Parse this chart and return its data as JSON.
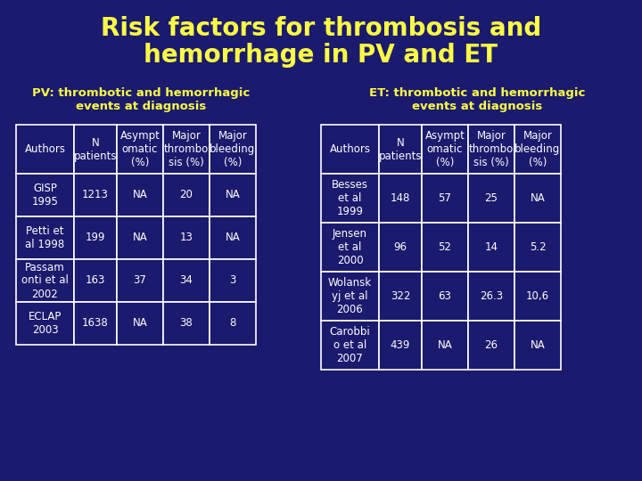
{
  "title_line1": "Risk factors for thrombosis and",
  "title_line2": "hemorrhage in PV and ET",
  "title_color": "#FFFF44",
  "bg_color": "#1a1a6e",
  "table_bg": "#1a1a6e",
  "table_border_color": "#ffffff",
  "table_text_color": "#ffffff",
  "subtitle_color": "#FFFF44",
  "pv_subtitle": "PV: thrombotic and hemorrhagic\nevents at diagnosis",
  "et_subtitle": "ET: thrombotic and hemorrhagic\nevents at diagnosis",
  "pv_headers": [
    "Authors",
    "N\npatients",
    "Asympt\nomatic\n(%)",
    "Major\nthrombo\nsis (%)",
    "Major\nbleeding\n(%)"
  ],
  "pv_rows": [
    [
      "GISP\n1995",
      "1213",
      "NA",
      "20",
      "NA"
    ],
    [
      "Petti et\nal 1998",
      "199",
      "NA",
      "13",
      "NA"
    ],
    [
      "Passam\nonti et al\n2002",
      "163",
      "37",
      "34",
      "3"
    ],
    [
      "ECLAP\n2003",
      "1638",
      "NA",
      "38",
      "8"
    ]
  ],
  "et_headers": [
    "Authors",
    "N\npatients",
    "Asympt\nomatic\n(%)",
    "Major\nthrombo\nsis (%)",
    "Major\nbleeding\n(%)"
  ],
  "et_rows": [
    [
      "Besses\net al\n1999",
      "148",
      "57",
      "25",
      "NA"
    ],
    [
      "Jensen\net al\n2000",
      "96",
      "52",
      "14",
      "5.2"
    ],
    [
      "Wolansk\nyj et al\n2006",
      "322",
      "63",
      "26.3",
      "10,6"
    ],
    [
      "Carobbi\no et al\n2007",
      "439",
      "NA",
      "26",
      "NA"
    ]
  ]
}
